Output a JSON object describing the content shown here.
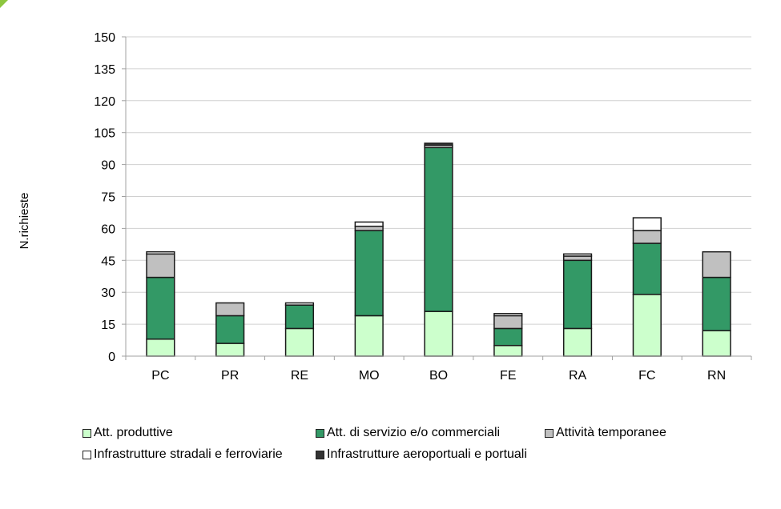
{
  "chart_data": {
    "type": "bar",
    "stacked": true,
    "title": "",
    "xlabel": "",
    "ylabel": "N.richieste",
    "ylim": [
      0,
      150
    ],
    "yticks": [
      0,
      15,
      30,
      45,
      60,
      75,
      90,
      105,
      120,
      135,
      150
    ],
    "grid": true,
    "legend_position": "bottom",
    "categories": [
      "PC",
      "PR",
      "RE",
      "MO",
      "BO",
      "FE",
      "RA",
      "FC",
      "RN"
    ],
    "series": [
      {
        "name": "Att. produttive",
        "color": "#ccffcc",
        "values": [
          8,
          6,
          13,
          19,
          21,
          5,
          13,
          29,
          12
        ]
      },
      {
        "name": "Att. di servizio e/o commerciali",
        "color": "#339966",
        "values": [
          29,
          13,
          11,
          40,
          77,
          8,
          32,
          24,
          25
        ]
      },
      {
        "name": "Attività temporanee",
        "color": "#c0c0c0",
        "values": [
          11,
          6,
          0,
          2,
          0,
          6,
          2,
          6,
          12
        ]
      },
      {
        "name": "Infrastrutture stradali e ferroviarie",
        "color": "#ffffff",
        "values": [
          1,
          0,
          1,
          2,
          1,
          1,
          1,
          6,
          0
        ]
      },
      {
        "name": "Infrastrutture aeroportuali e portuali",
        "color": "#333333",
        "values": [
          0,
          0,
          0,
          0,
          1,
          0,
          0,
          0,
          0
        ]
      }
    ]
  }
}
